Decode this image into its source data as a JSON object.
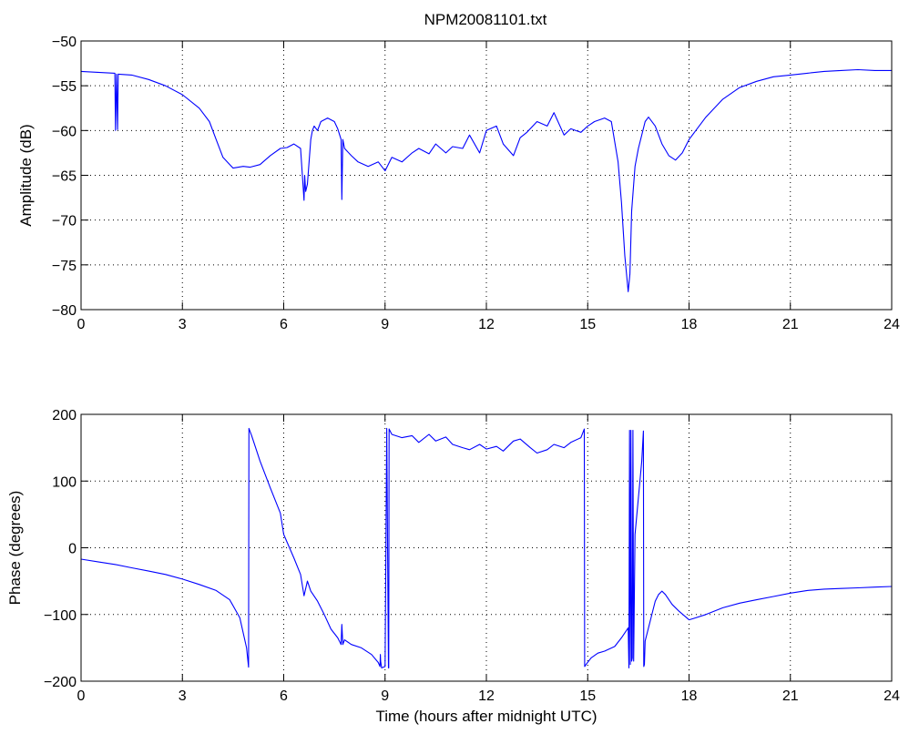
{
  "figure": {
    "title": "NPM20081101.txt"
  },
  "chart_data": [
    {
      "type": "line",
      "title": "NPM20081101.txt",
      "xlabel": "",
      "ylabel": "Amplitude (dB)",
      "xlim": [
        0,
        24
      ],
      "ylim": [
        -80,
        -50
      ],
      "xticks": [
        0,
        3,
        6,
        9,
        12,
        15,
        18,
        21,
        24
      ],
      "yticks": [
        -80,
        -75,
        -70,
        -65,
        -60,
        -55,
        -50
      ],
      "xtick_labels": [
        "0",
        "3",
        "6",
        "9",
        "12",
        "15",
        "18",
        "21",
        "24"
      ],
      "ytick_labels": [
        "−80",
        "−75",
        "−70",
        "−65",
        "−60",
        "−55",
        "−50"
      ],
      "grid": true,
      "color": "#0000ff",
      "series": [
        {
          "x": [
            0,
            0.5,
            1.0,
            1.02,
            1.05,
            1.08,
            1.1,
            1.5,
            2.0,
            2.5,
            3.0,
            3.5,
            3.8,
            4.0,
            4.2,
            4.5,
            4.8,
            5.0,
            5.3,
            5.6,
            5.9,
            6.1,
            6.3,
            6.5,
            6.6,
            6.62,
            6.65,
            6.7,
            6.8,
            6.85,
            6.9,
            7.0,
            7.1,
            7.3,
            7.5,
            7.6,
            7.7,
            7.72,
            7.75,
            7.8,
            8.0,
            8.2,
            8.5,
            8.8,
            9.0,
            9.2,
            9.5,
            9.8,
            10.0,
            10.3,
            10.5,
            10.8,
            11.0,
            11.3,
            11.5,
            11.8,
            12.0,
            12.3,
            12.5,
            12.8,
            13.0,
            13.2,
            13.5,
            13.8,
            14.0,
            14.3,
            14.5,
            14.8,
            15.0,
            15.2,
            15.5,
            15.7,
            15.9,
            16.0,
            16.1,
            16.2,
            16.25,
            16.3,
            16.4,
            16.5,
            16.6,
            16.7,
            16.8,
            17.0,
            17.2,
            17.4,
            17.6,
            17.8,
            18.0,
            18.5,
            19.0,
            19.5,
            20.0,
            20.5,
            21.0,
            21.5,
            22.0,
            22.5,
            23.0,
            23.5,
            24.0
          ],
          "y": [
            -53.4,
            -53.5,
            -53.6,
            -60.0,
            -53.7,
            -59.9,
            -53.7,
            -53.8,
            -54.3,
            -55.0,
            -56.0,
            -57.5,
            -59.0,
            -61.0,
            -63.0,
            -64.2,
            -64.0,
            -64.1,
            -63.8,
            -62.8,
            -62.0,
            -61.9,
            -61.5,
            -62.0,
            -67.8,
            -65.0,
            -66.8,
            -66.0,
            -61.0,
            -60.0,
            -59.5,
            -60.0,
            -59.0,
            -58.6,
            -59.0,
            -59.8,
            -61.0,
            -67.7,
            -61.0,
            -62.0,
            -62.8,
            -63.5,
            -64.0,
            -63.5,
            -64.5,
            -63.0,
            -63.5,
            -62.5,
            -62.0,
            -62.6,
            -61.5,
            -62.5,
            -61.8,
            -62.0,
            -60.5,
            -62.5,
            -60.0,
            -59.5,
            -61.5,
            -62.8,
            -60.8,
            -60.2,
            -59.0,
            -59.5,
            -58.0,
            -60.5,
            -59.8,
            -60.2,
            -59.5,
            -59.0,
            -58.6,
            -59.0,
            -63.5,
            -68.0,
            -74.0,
            -78.0,
            -76.0,
            -69.0,
            -64.0,
            -62.0,
            -60.5,
            -59.0,
            -58.5,
            -59.5,
            -61.5,
            -62.8,
            -63.3,
            -62.5,
            -61.0,
            -58.5,
            -56.5,
            -55.2,
            -54.5,
            -54.0,
            -53.8,
            -53.6,
            -53.4,
            -53.3,
            -53.2,
            -53.3,
            -53.3
          ]
        }
      ]
    },
    {
      "type": "line",
      "title": "",
      "xlabel": "Time (hours after midnight UTC)",
      "ylabel": "Phase (degrees)",
      "xlim": [
        0,
        24
      ],
      "ylim": [
        -200,
        200
      ],
      "xticks": [
        0,
        3,
        6,
        9,
        12,
        15,
        18,
        21,
        24
      ],
      "yticks": [
        -200,
        -100,
        0,
        100,
        200
      ],
      "xtick_labels": [
        "0",
        "3",
        "6",
        "9",
        "12",
        "15",
        "18",
        "21",
        "24"
      ],
      "ytick_labels": [
        "−200",
        "−100",
        "0",
        "100",
        "200"
      ],
      "grid": true,
      "color": "#0000ff",
      "series": [
        {
          "x": [
            0,
            0.5,
            1.0,
            1.5,
            2.0,
            2.5,
            3.0,
            3.5,
            4.0,
            4.4,
            4.7,
            4.9,
            4.96,
            4.97,
            5.05,
            5.3,
            5.6,
            5.9,
            6.0,
            6.3,
            6.5,
            6.6,
            6.7,
            6.8,
            7.0,
            7.2,
            7.4,
            7.6,
            7.7,
            7.72,
            7.75,
            7.8,
            8.0,
            8.3,
            8.6,
            8.8,
            8.85,
            8.86,
            8.87,
            8.9,
            9.0,
            9.05,
            9.1,
            9.11,
            9.12,
            9.2,
            9.5,
            9.8,
            10.0,
            10.3,
            10.5,
            10.8,
            11.0,
            11.3,
            11.5,
            11.8,
            12.0,
            12.3,
            12.5,
            12.8,
            13.0,
            13.3,
            13.5,
            13.8,
            14.0,
            14.3,
            14.5,
            14.8,
            14.9,
            14.91,
            14.95,
            15.1,
            15.3,
            15.5,
            15.8,
            16.0,
            16.2,
            16.22,
            16.24,
            16.26,
            16.28,
            16.3,
            16.32,
            16.34,
            16.36,
            16.4,
            16.5,
            16.6,
            16.65,
            16.66,
            16.68,
            16.7,
            16.9,
            17.0,
            17.1,
            17.2,
            17.3,
            17.5,
            17.7,
            18.0,
            18.2,
            18.5,
            19.0,
            19.5,
            20.0,
            20.5,
            21.0,
            21.5,
            22.0,
            22.5,
            23.0,
            23.5,
            24.0
          ],
          "y": [
            -17,
            -21,
            -25,
            -30,
            -35,
            -40,
            -47,
            -55,
            -64,
            -78,
            -105,
            -150,
            -179,
            179,
            168,
            130,
            90,
            52,
            20,
            -15,
            -40,
            -72,
            -50,
            -65,
            -80,
            -100,
            -122,
            -135,
            -145,
            -115,
            -145,
            -138,
            -145,
            -150,
            -160,
            -172,
            -178,
            -160,
            -170,
            -180,
            -178,
            179,
            -180,
            -180,
            178,
            170,
            165,
            168,
            158,
            170,
            160,
            166,
            155,
            150,
            147,
            155,
            148,
            152,
            145,
            160,
            163,
            150,
            142,
            147,
            155,
            150,
            158,
            165,
            178,
            -178,
            -175,
            -165,
            -158,
            -155,
            -148,
            -135,
            -120,
            -180,
            176,
            -175,
            176,
            -170,
            -165,
            176,
            -170,
            20,
            75,
            130,
            175,
            -178,
            -175,
            -140,
            -100,
            -80,
            -70,
            -65,
            -70,
            -85,
            -95,
            -108,
            -105,
            -100,
            -90,
            -83,
            -78,
            -73,
            -68,
            -64,
            -62,
            -61,
            -60,
            -59,
            -58
          ]
        }
      ]
    }
  ]
}
